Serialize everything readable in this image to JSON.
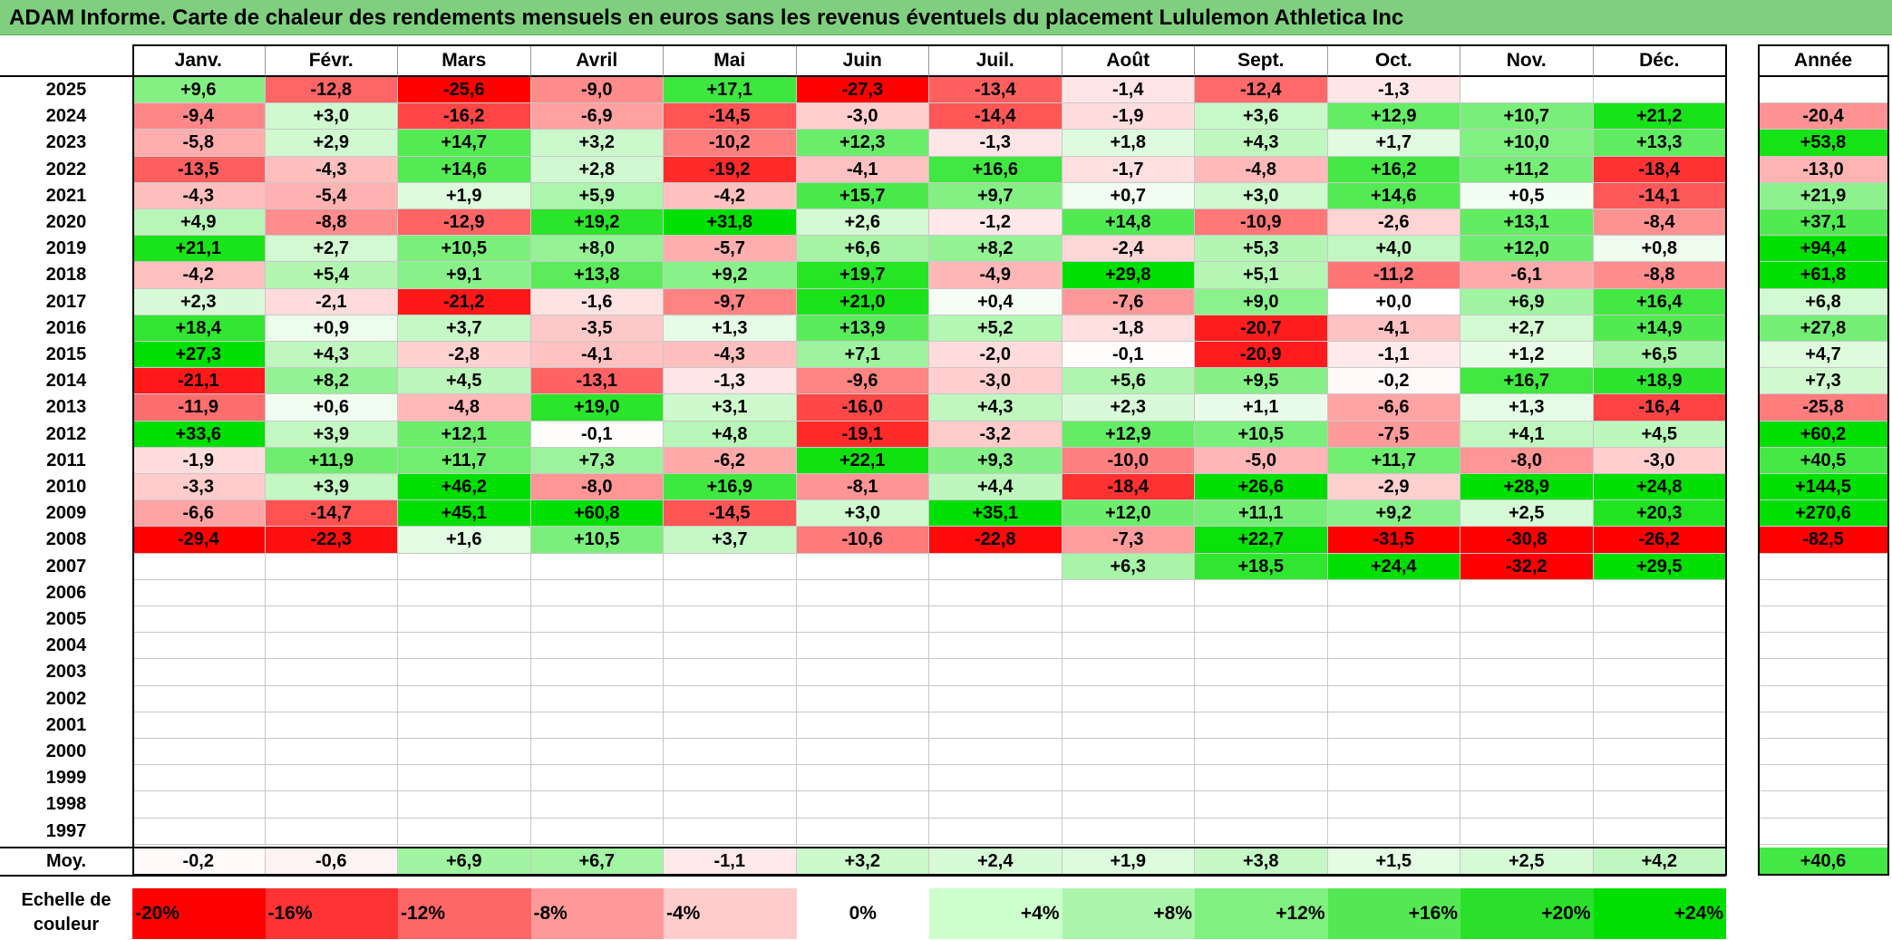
{
  "title": "ADAM Informe. Carte de chaleur des rendements mensuels en euros sans les revenus éventuels du placement Lululemon Athletica Inc",
  "chart_data": {
    "type": "heatmap",
    "title": "ADAM Informe. Carte de chaleur des rendements mensuels en euros sans les revenus éventuels du placement Lululemon Athletica Inc",
    "columns": [
      "Janv.",
      "Févr.",
      "Mars",
      "Avril",
      "Mai",
      "Juin",
      "Juil.",
      "Août",
      "Sept.",
      "Oct.",
      "Nov.",
      "Déc."
    ],
    "year_column": "Année",
    "rows": [
      {
        "year": "2025",
        "values": [
          "+9,6",
          "-12,8",
          "-25,6",
          "-9,0",
          "+17,1",
          "-27,3",
          "-13,4",
          "-1,4",
          "-12,4",
          "-1,3",
          "",
          ""
        ],
        "annual": ""
      },
      {
        "year": "2024",
        "values": [
          "-9,4",
          "+3,0",
          "-16,2",
          "-6,9",
          "-14,5",
          "-3,0",
          "-14,4",
          "-1,9",
          "+3,6",
          "+12,9",
          "+10,7",
          "+21,2"
        ],
        "annual": "-20,4"
      },
      {
        "year": "2023",
        "values": [
          "-5,8",
          "+2,9",
          "+14,7",
          "+3,2",
          "-10,2",
          "+12,3",
          "-1,3",
          "+1,8",
          "+4,3",
          "+1,7",
          "+10,0",
          "+13,3"
        ],
        "annual": "+53,8"
      },
      {
        "year": "2022",
        "values": [
          "-13,5",
          "-4,3",
          "+14,6",
          "+2,8",
          "-19,2",
          "-4,1",
          "+16,6",
          "-1,7",
          "-4,8",
          "+16,2",
          "+11,2",
          "-18,4"
        ],
        "annual": "-13,0"
      },
      {
        "year": "2021",
        "values": [
          "-4,3",
          "-5,4",
          "+1,9",
          "+5,9",
          "-4,2",
          "+15,7",
          "+9,7",
          "+0,7",
          "+3,0",
          "+14,6",
          "+0,5",
          "-14,1"
        ],
        "annual": "+21,9"
      },
      {
        "year": "2020",
        "values": [
          "+4,9",
          "-8,8",
          "-12,9",
          "+19,2",
          "+31,8",
          "+2,6",
          "-1,2",
          "+14,8",
          "-10,9",
          "-2,6",
          "+13,1",
          "-8,4"
        ],
        "annual": "+37,1"
      },
      {
        "year": "2019",
        "values": [
          "+21,1",
          "+2,7",
          "+10,5",
          "+8,0",
          "-5,7",
          "+6,6",
          "+8,2",
          "-2,4",
          "+5,3",
          "+4,0",
          "+12,0",
          "+0,8"
        ],
        "annual": "+94,4"
      },
      {
        "year": "2018",
        "values": [
          "-4,2",
          "+5,4",
          "+9,1",
          "+13,8",
          "+9,2",
          "+19,7",
          "-4,9",
          "+29,8",
          "+5,1",
          "-11,2",
          "-6,1",
          "-8,8"
        ],
        "annual": "+61,8"
      },
      {
        "year": "2017",
        "values": [
          "+2,3",
          "-2,1",
          "-21,2",
          "-1,6",
          "-9,7",
          "+21,0",
          "+0,4",
          "-7,6",
          "+9,0",
          "+0,0",
          "+6,9",
          "+16,4"
        ],
        "annual": "+6,8"
      },
      {
        "year": "2016",
        "values": [
          "+18,4",
          "+0,9",
          "+3,7",
          "-3,5",
          "+1,3",
          "+13,9",
          "+5,2",
          "-1,8",
          "-20,7",
          "-4,1",
          "+2,7",
          "+14,9"
        ],
        "annual": "+27,8"
      },
      {
        "year": "2015",
        "values": [
          "+27,3",
          "+4,3",
          "-2,8",
          "-4,1",
          "-4,3",
          "+7,1",
          "-2,0",
          "-0,1",
          "-20,9",
          "-1,1",
          "+1,2",
          "+6,5"
        ],
        "annual": "+4,7"
      },
      {
        "year": "2014",
        "values": [
          "-21,1",
          "+8,2",
          "+4,5",
          "-13,1",
          "-1,3",
          "-9,6",
          "-3,0",
          "+5,6",
          "+9,5",
          "-0,2",
          "+16,7",
          "+18,9"
        ],
        "annual": "+7,3"
      },
      {
        "year": "2013",
        "values": [
          "-11,9",
          "+0,6",
          "-4,8",
          "+19,0",
          "+3,1",
          "-16,0",
          "+4,3",
          "+2,3",
          "+1,1",
          "-6,6",
          "+1,3",
          "-16,4"
        ],
        "annual": "-25,8"
      },
      {
        "year": "2012",
        "values": [
          "+33,6",
          "+3,9",
          "+12,1",
          "-0,1",
          "+4,8",
          "-19,1",
          "-3,2",
          "+12,9",
          "+10,5",
          "-7,5",
          "+4,1",
          "+4,5"
        ],
        "annual": "+60,2"
      },
      {
        "year": "2011",
        "values": [
          "-1,9",
          "+11,9",
          "+11,7",
          "+7,3",
          "-6,2",
          "+22,1",
          "+9,3",
          "-10,0",
          "-5,0",
          "+11,7",
          "-8,0",
          "-3,0"
        ],
        "annual": "+40,5"
      },
      {
        "year": "2010",
        "values": [
          "-3,3",
          "+3,9",
          "+46,2",
          "-8,0",
          "+16,9",
          "-8,1",
          "+4,4",
          "-18,4",
          "+26,6",
          "-2,9",
          "+28,9",
          "+24,8"
        ],
        "annual": "+144,5"
      },
      {
        "year": "2009",
        "values": [
          "-6,6",
          "-14,7",
          "+45,1",
          "+60,8",
          "-14,5",
          "+3,0",
          "+35,1",
          "+12,0",
          "+11,1",
          "+9,2",
          "+2,5",
          "+20,3"
        ],
        "annual": "+270,6"
      },
      {
        "year": "2008",
        "values": [
          "-29,4",
          "-22,3",
          "+1,6",
          "+10,5",
          "+3,7",
          "-10,6",
          "-22,8",
          "-7,3",
          "+22,7",
          "-31,5",
          "-30,8",
          "-26,2"
        ],
        "annual": "-82,5"
      },
      {
        "year": "2007",
        "values": [
          "",
          "",
          "",
          "",
          "",
          "",
          "",
          "+6,3",
          "+18,5",
          "+24,4",
          "-32,2",
          "+29,5"
        ],
        "annual": ""
      },
      {
        "year": "2006",
        "values": [
          "",
          "",
          "",
          "",
          "",
          "",
          "",
          "",
          "",
          "",
          "",
          ""
        ],
        "annual": ""
      },
      {
        "year": "2005",
        "values": [
          "",
          "",
          "",
          "",
          "",
          "",
          "",
          "",
          "",
          "",
          "",
          ""
        ],
        "annual": ""
      },
      {
        "year": "2004",
        "values": [
          "",
          "",
          "",
          "",
          "",
          "",
          "",
          "",
          "",
          "",
          "",
          ""
        ],
        "annual": ""
      },
      {
        "year": "2003",
        "values": [
          "",
          "",
          "",
          "",
          "",
          "",
          "",
          "",
          "",
          "",
          "",
          ""
        ],
        "annual": ""
      },
      {
        "year": "2002",
        "values": [
          "",
          "",
          "",
          "",
          "",
          "",
          "",
          "",
          "",
          "",
          "",
          ""
        ],
        "annual": ""
      },
      {
        "year": "2001",
        "values": [
          "",
          "",
          "",
          "",
          "",
          "",
          "",
          "",
          "",
          "",
          "",
          ""
        ],
        "annual": ""
      },
      {
        "year": "2000",
        "values": [
          "",
          "",
          "",
          "",
          "",
          "",
          "",
          "",
          "",
          "",
          "",
          ""
        ],
        "annual": ""
      },
      {
        "year": "1999",
        "values": [
          "",
          "",
          "",
          "",
          "",
          "",
          "",
          "",
          "",
          "",
          "",
          ""
        ],
        "annual": ""
      },
      {
        "year": "1998",
        "values": [
          "",
          "",
          "",
          "",
          "",
          "",
          "",
          "",
          "",
          "",
          "",
          ""
        ],
        "annual": ""
      },
      {
        "year": "1997",
        "values": [
          "",
          "",
          "",
          "",
          "",
          "",
          "",
          "",
          "",
          "",
          "",
          ""
        ],
        "annual": ""
      }
    ],
    "average": {
      "label": "Moy.",
      "values": [
        "-0,2",
        "-0,6",
        "+6,9",
        "+6,7",
        "-1,1",
        "+3,2",
        "+2,4",
        "+1,9",
        "+3,8",
        "+1,5",
        "+2,5",
        "+4,2"
      ],
      "annual": "+40,6"
    },
    "color_scale": {
      "label": "Echelle de couleur",
      "steps": [
        {
          "label": "-20%",
          "value": -20,
          "color": "#ff0000"
        },
        {
          "label": "-16%",
          "value": -16,
          "color": "#ff3333"
        },
        {
          "label": "-12%",
          "value": -12,
          "color": "#ff6666"
        },
        {
          "label": "-8%",
          "value": -8,
          "color": "#ff9999"
        },
        {
          "label": "-4%",
          "value": -4,
          "color": "#ffcccc"
        },
        {
          "label": "0%",
          "value": 0,
          "color": "#ffffff"
        },
        {
          "label": "+4%",
          "value": 4,
          "color": "#ccffcc"
        },
        {
          "label": "+8%",
          "value": 8,
          "color": "#aaf5aa"
        },
        {
          "label": "+12%",
          "value": 12,
          "color": "#80f080"
        },
        {
          "label": "+16%",
          "value": 16,
          "color": "#55e855"
        },
        {
          "label": "+20%",
          "value": 20,
          "color": "#2be02b"
        },
        {
          "label": "+24%",
          "value": 24,
          "color": "#00e000"
        }
      ]
    }
  }
}
